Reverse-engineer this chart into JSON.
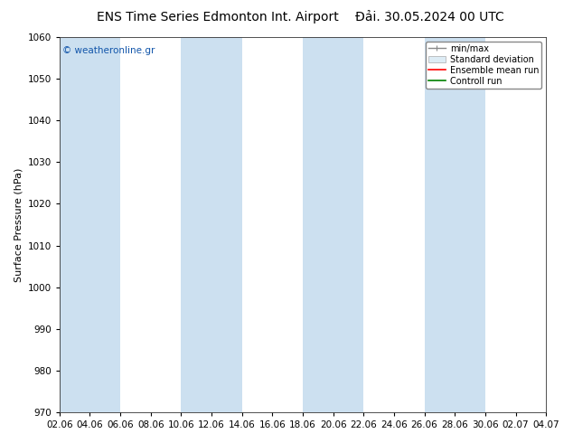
{
  "title_left": "ENS Time Series Edmonton Int. Airport",
  "title_right": "Đải. 30.05.2024 00 UTC",
  "ylabel": "Surface Pressure (hPa)",
  "ylim": [
    970,
    1060
  ],
  "yticks": [
    970,
    980,
    990,
    1000,
    1010,
    1020,
    1030,
    1040,
    1050,
    1060
  ],
  "xtick_labels": [
    "02.06",
    "04.06",
    "06.06",
    "08.06",
    "10.06",
    "12.06",
    "14.06",
    "16.06",
    "18.06",
    "20.06",
    "22.06",
    "24.06",
    "26.06",
    "28.06",
    "30.06",
    "02.07",
    "04.07"
  ],
  "num_ticks": 17,
  "bg_color": "#ffffff",
  "plot_bg_color": "#ffffff",
  "band_color": "#cce0f0",
  "band_alpha": 1.0,
  "watermark": "© weatheronline.gr",
  "watermark_color": "#1155aa",
  "legend_entries": [
    "min/max",
    "Standard deviation",
    "Ensemble mean run",
    "Controll run"
  ],
  "legend_line_colors": [
    "#888888",
    "#cccccc",
    "#ff0000",
    "#008000"
  ],
  "title_fontsize": 10,
  "axis_fontsize": 8,
  "tick_fontsize": 7.5
}
